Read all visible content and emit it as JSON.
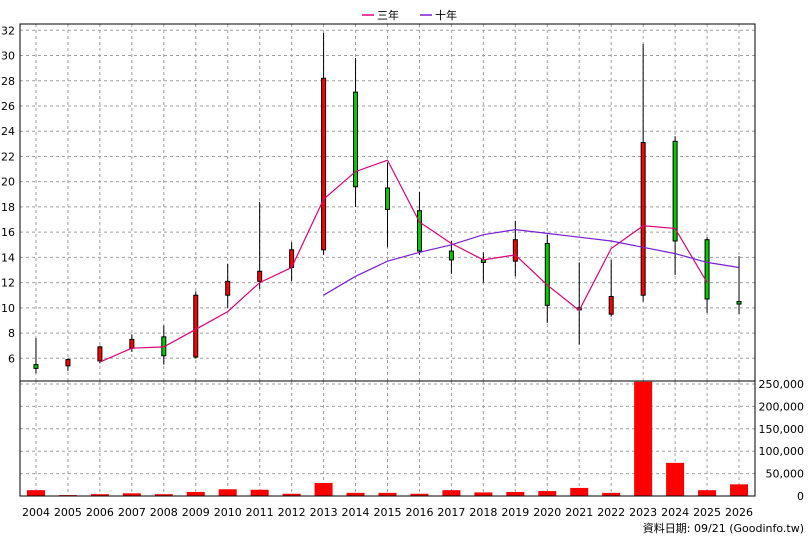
{
  "chart_data": {
    "type": "candlestick",
    "legend": {
      "placement": "top-center",
      "items": [
        {
          "label": "三年",
          "color": "#e0007a"
        },
        {
          "label": "十年",
          "color": "#7a1fd6"
        }
      ]
    },
    "footer": "資料日期: 09/21 (Goodinfo.tw)",
    "years": [
      "2004",
      "2005",
      "2006",
      "2007",
      "2008",
      "2009",
      "2010",
      "2011",
      "2012",
      "2013",
      "2014",
      "2015",
      "2016",
      "2017",
      "2018",
      "2019",
      "2020",
      "2021",
      "2022",
      "2023",
      "2024",
      "2025",
      "2026"
    ],
    "price_axis": {
      "ylim": [
        4.2,
        32.5
      ],
      "ticks": [
        6,
        8,
        10,
        12,
        14,
        16,
        18,
        20,
        22,
        24,
        26,
        28,
        30,
        32
      ],
      "grid": true
    },
    "volume_axis": {
      "ylim": [
        0,
        250000
      ],
      "ticks": [
        0,
        50000,
        100000,
        150000,
        200000,
        250000
      ],
      "tick_labels": [
        "0",
        "50,000",
        "100,000",
        "150,000",
        "200,000",
        "250,000"
      ],
      "grid": true
    },
    "candles": [
      {
        "open": 5.2,
        "close": 5.5,
        "high": 7.6,
        "low": 4.8,
        "color": "#00cc00"
      },
      {
        "open": 5.4,
        "close": 5.9,
        "high": 6.0,
        "low": 5.0,
        "color": "#ff0000"
      },
      {
        "open": 5.8,
        "close": 6.9,
        "high": 7.0,
        "low": 5.6,
        "color": "#ff0000"
      },
      {
        "open": 6.8,
        "close": 7.5,
        "high": 7.9,
        "low": 6.5,
        "color": "#ff0000"
      },
      {
        "open": 7.7,
        "close": 6.2,
        "high": 8.6,
        "low": 5.5,
        "color": "#00cc00"
      },
      {
        "open": 6.1,
        "close": 11.0,
        "high": 11.3,
        "low": 6.0,
        "color": "#ff0000"
      },
      {
        "open": 11.0,
        "close": 12.1,
        "high": 13.5,
        "low": 10.0,
        "color": "#ff0000"
      },
      {
        "open": 12.1,
        "close": 12.9,
        "high": 18.4,
        "low": 11.5,
        "color": "#ff0000"
      },
      {
        "open": 13.2,
        "close": 14.6,
        "high": 15.2,
        "low": 12.1,
        "color": "#ff0000"
      },
      {
        "open": 14.6,
        "close": 28.2,
        "high": 31.8,
        "low": 14.2,
        "color": "#ff0000"
      },
      {
        "open": 27.1,
        "close": 19.6,
        "high": 29.8,
        "low": 18.0,
        "color": "#00cc00"
      },
      {
        "open": 19.5,
        "close": 17.8,
        "high": 21.5,
        "low": 14.8,
        "color": "#00cc00"
      },
      {
        "open": 17.7,
        "close": 14.5,
        "high": 19.2,
        "low": 14.2,
        "color": "#00cc00"
      },
      {
        "open": 14.5,
        "close": 13.8,
        "high": 15.3,
        "low": 12.7,
        "color": "#00cc00"
      },
      {
        "open": 13.8,
        "close": 13.6,
        "high": 14.4,
        "low": 12.0,
        "color": "#00cc00"
      },
      {
        "open": 13.7,
        "close": 15.4,
        "high": 16.9,
        "low": 12.5,
        "color": "#ff0000"
      },
      {
        "open": 15.1,
        "close": 10.2,
        "high": 15.8,
        "low": 8.8,
        "color": "#00cc00"
      },
      {
        "open": 10.0,
        "close": 10.0,
        "high": 13.6,
        "low": 7.1,
        "color": "#00cc00"
      },
      {
        "open": 9.5,
        "close": 10.9,
        "high": 13.8,
        "low": 9.3,
        "color": "#ff0000"
      },
      {
        "open": 11.0,
        "close": 23.1,
        "high": 30.9,
        "low": 10.5,
        "color": "#ff0000"
      },
      {
        "open": 23.2,
        "close": 15.3,
        "high": 23.6,
        "low": 12.6,
        "color": "#00cc00"
      },
      {
        "open": 15.4,
        "close": 10.7,
        "high": 15.6,
        "low": 9.6,
        "color": "#00cc00"
      },
      {
        "open": 10.3,
        "close": 10.5,
        "high": 14.1,
        "low": 9.5,
        "color": "#00cc00"
      }
    ],
    "series": [
      {
        "label": "三年",
        "color": "#e0007a",
        "start_index": 2,
        "values": [
          5.7,
          6.8,
          6.9,
          8.3,
          9.7,
          12.0,
          13.2,
          18.6,
          20.8,
          21.7,
          16.8,
          15.1,
          13.8,
          14.2,
          11.8,
          9.8,
          14.7,
          16.5,
          16.3,
          12.0
        ]
      },
      {
        "label": "十年",
        "color": "#7a1fd6",
        "start_index": 9,
        "values": [
          11.0,
          12.5,
          13.7,
          14.4,
          15.0,
          15.8,
          16.2,
          15.9,
          15.6,
          15.3,
          14.8,
          14.3,
          13.6,
          13.2
        ]
      }
    ],
    "volume": {
      "color": "#ff0000",
      "values": [
        13000,
        2000,
        4000,
        6000,
        4000,
        9000,
        15000,
        14000,
        5000,
        29000,
        7000,
        7000,
        5000,
        13000,
        8000,
        9000,
        11000,
        18000,
        7000,
        255000,
        74000,
        13000,
        26000
      ]
    }
  }
}
